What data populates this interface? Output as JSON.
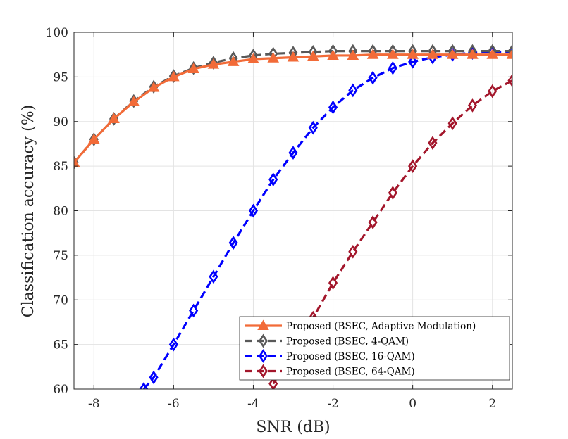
{
  "chart_data": {
    "type": "line",
    "xlabel": "SNR (dB)",
    "ylabel": "Classification accuracy (%)",
    "xlim": [
      -8.5,
      2.5
    ],
    "ylim": [
      60,
      100
    ],
    "xticks": [
      -8,
      -6,
      -4,
      -2,
      0,
      2
    ],
    "xtick_labels": [
      "-8",
      "-6",
      "-4",
      "-2",
      "0",
      "2"
    ],
    "yticks": [
      60,
      65,
      70,
      75,
      80,
      85,
      90,
      95,
      100
    ],
    "ytick_labels": [
      "60",
      "65",
      "70",
      "75",
      "80",
      "85",
      "90",
      "95",
      "100"
    ],
    "grid": true,
    "legend_position": "bottom-right",
    "series": [
      {
        "name": "Proposed (BSEC, Adaptive Modulation)",
        "color": "#f26b38",
        "line_style": "solid",
        "marker": "triangle",
        "x": [
          -8.5,
          -8,
          -7.5,
          -7,
          -6.5,
          -6,
          -5.5,
          -5,
          -4.5,
          -4,
          -3.5,
          -3,
          -2.5,
          -2,
          -1.5,
          -1,
          -0.5,
          0,
          0.5,
          1,
          1.5,
          2,
          2.5
        ],
        "y": [
          85.4,
          88.0,
          90.3,
          92.2,
          93.8,
          95.0,
          95.9,
          96.4,
          96.7,
          97.0,
          97.1,
          97.2,
          97.3,
          97.4,
          97.4,
          97.5,
          97.5,
          97.5,
          97.5,
          97.5,
          97.5,
          97.5,
          97.5
        ]
      },
      {
        "name": "Proposed (BSEC, 4-QAM)",
        "color": "#595959",
        "line_style": "dashed",
        "marker": "diamond",
        "x": [
          -8.5,
          -8,
          -7.5,
          -7,
          -6.5,
          -6,
          -5.5,
          -5,
          -4.5,
          -4,
          -3.5,
          -3,
          -2.5,
          -2,
          -1.5,
          -1,
          -0.5,
          0,
          0.5,
          1,
          1.5,
          2,
          2.5
        ],
        "y": [
          85.4,
          88.0,
          90.3,
          92.3,
          93.9,
          95.1,
          96.0,
          96.6,
          97.1,
          97.4,
          97.6,
          97.7,
          97.8,
          97.9,
          97.9,
          97.9,
          97.9,
          97.9,
          97.9,
          97.9,
          97.9,
          97.9,
          97.9
        ]
      },
      {
        "name": "Proposed (BSEC, 16-QAM)",
        "color": "#0000ff",
        "line_style": "dashed",
        "marker": "diamond",
        "x": [
          -6.75,
          -6.5,
          -6,
          -5.5,
          -5,
          -4.5,
          -4,
          -3.5,
          -3,
          -2.5,
          -2,
          -1.5,
          -1,
          -0.5,
          0,
          0.5,
          1,
          1.5,
          2,
          2.5
        ],
        "y": [
          60.0,
          61.3,
          65.0,
          68.8,
          72.6,
          76.4,
          80.0,
          83.5,
          86.5,
          89.3,
          91.6,
          93.5,
          94.9,
          96.0,
          96.7,
          97.2,
          97.5,
          97.7,
          97.8,
          97.8
        ]
      },
      {
        "name": "Proposed (BSEC, 64-QAM)",
        "color": "#a3162b",
        "line_style": "dashed",
        "marker": "diamond",
        "x": [
          -3.5,
          -3,
          -2.5,
          -2,
          -1.5,
          -1,
          -0.5,
          0,
          0.5,
          1,
          1.5,
          2,
          2.5
        ],
        "y": [
          60.6,
          64.3,
          68.0,
          71.9,
          75.4,
          78.7,
          82.0,
          85.0,
          87.6,
          89.8,
          91.8,
          93.4,
          94.6
        ]
      }
    ]
  }
}
